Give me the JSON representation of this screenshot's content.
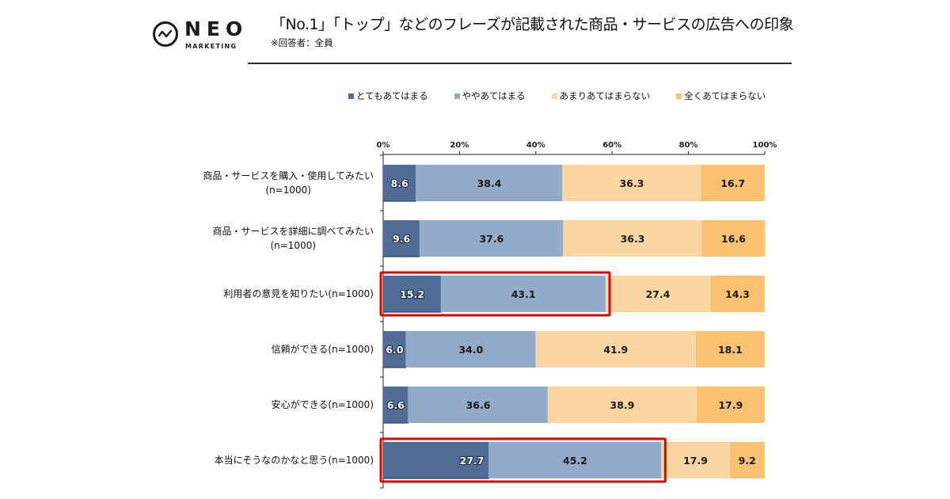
{
  "brand": {
    "logo_icon": "pulse-circle-icon",
    "name": "NEO",
    "sub": "MARKETING"
  },
  "header": {
    "title": "「No.1」「トップ」などのフレーズが記載された商品・サービスの広告への印象",
    "subtitle": "※回答者：全員"
  },
  "colors": {
    "very": "#4f6d96",
    "somewhat": "#93aac9",
    "not_much": "#fcd6a2",
    "not_at_all": "#f9c272",
    "highlight": "#e60000",
    "divider": "#1f2747"
  },
  "chart_data": {
    "type": "bar",
    "orientation": "horizontal",
    "stacked": true,
    "title": "「No.1」「トップ」などのフレーズが記載された商品・サービスの広告への印象",
    "subtitle": "※回答者：全員",
    "xlabel": "",
    "ylabel": "",
    "xlim": [
      0,
      100
    ],
    "x_ticks": [
      "0%",
      "20%",
      "40%",
      "60%",
      "80%",
      "100%"
    ],
    "legend_position": "top",
    "grid": false,
    "categories": [
      [
        "商品・サービスを購入・使用してみたい",
        "(n=1000)"
      ],
      [
        "商品・サービスを詳細に調べてみたい",
        "(n=1000)"
      ],
      [
        "利用者の意見を知りたい(n=1000)"
      ],
      [
        "信頼ができる(n=1000)"
      ],
      [
        "安心ができる(n=1000)"
      ],
      [
        "本当にそうなのかなと思う(n=1000)"
      ]
    ],
    "series": [
      {
        "name": "とてもあてはまる",
        "color_key": "very",
        "values": [
          8.6,
          9.6,
          15.2,
          6.0,
          6.6,
          27.7
        ]
      },
      {
        "name": "ややあてはまる",
        "color_key": "somewhat",
        "values": [
          38.4,
          37.6,
          43.1,
          34.0,
          36.6,
          45.2
        ]
      },
      {
        "name": "あまりあてはまらない",
        "color_key": "not_much",
        "values": [
          36.3,
          36.3,
          27.4,
          41.9,
          38.9,
          17.9
        ]
      },
      {
        "name": "全くあてはまらない",
        "color_key": "not_at_all",
        "values": [
          16.7,
          16.6,
          14.3,
          18.1,
          17.9,
          9.2
        ]
      }
    ],
    "value_labels": [
      [
        "8.6",
        "38.4",
        "36.3",
        "16.7"
      ],
      [
        "9.6",
        "37.6",
        "36.3",
        "16.6"
      ],
      [
        "15.2",
        "43.1",
        "27.4",
        "14.3"
      ],
      [
        "6.0",
        "34.0",
        "41.9",
        "18.1"
      ],
      [
        "6.6",
        "36.6",
        "38.9",
        "17.9"
      ],
      [
        "27.7",
        "45.2",
        "17.9",
        "9.2"
      ]
    ],
    "highlights": [
      {
        "row": 2,
        "series": [
          "とてもあてはまる",
          "ややあてはまる"
        ],
        "note": "red box"
      },
      {
        "row": 5,
        "series": [
          "とてもあてはまる",
          "ややあてはまる"
        ],
        "note": "red box"
      }
    ]
  }
}
